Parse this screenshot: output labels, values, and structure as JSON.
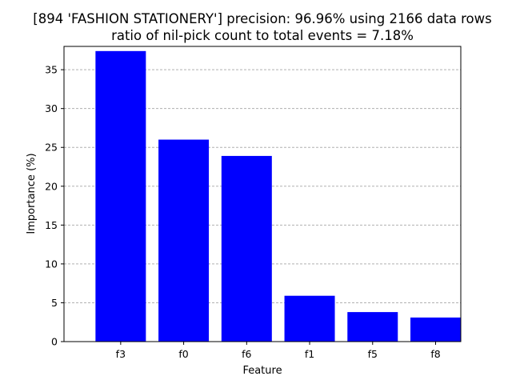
{
  "chart_data": {
    "type": "bar",
    "title_line1": "[894 'FASHION STATIONERY'] precision: 96.96% using 2166 data rows",
    "title_line2": "ratio of nil-pick count to total events = 7.18%",
    "xlabel": "Feature",
    "ylabel": "Importance (%)",
    "categories": [
      "f3",
      "f0",
      "f6",
      "f1",
      "f5",
      "f8"
    ],
    "values": [
      37.4,
      26.0,
      23.9,
      5.9,
      3.8,
      3.1
    ],
    "ylim": [
      0,
      38
    ],
    "yticks": [
      0,
      5,
      10,
      15,
      20,
      25,
      30,
      35
    ],
    "grid": "y-dashed",
    "bar_color": "#0000ff",
    "grid_color": "#b0b0b0"
  }
}
